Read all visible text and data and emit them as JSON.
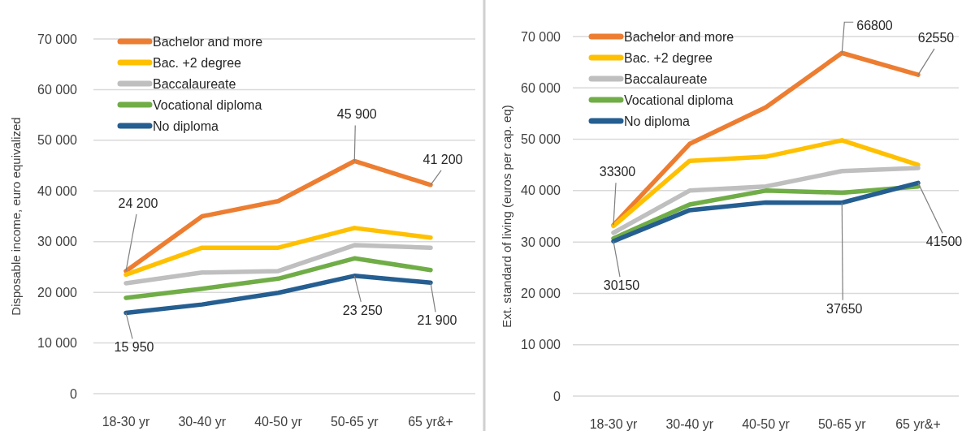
{
  "chart_data": [
    {
      "type": "line",
      "ylabel": "Disposable income, euro equivalized",
      "categories": [
        "18-30 yr",
        "30-40 yr",
        "40-50 yr",
        "50-65 yr",
        "65 yr&+"
      ],
      "ylim": [
        0,
        70000
      ],
      "yticks": [
        {
          "value": 0,
          "label": "0"
        },
        {
          "value": 10000,
          "label": "10 000"
        },
        {
          "value": 20000,
          "label": "20 000"
        },
        {
          "value": 30000,
          "label": "30 000"
        },
        {
          "value": 40000,
          "label": "40 000"
        },
        {
          "value": 50000,
          "label": "50 000"
        },
        {
          "value": 60000,
          "label": "60 000"
        },
        {
          "value": 70000,
          "label": "70 000"
        }
      ],
      "grid": "y",
      "legend": "top left",
      "marker": "none",
      "line_style": "solid",
      "series": [
        {
          "name": "Bachelor and more",
          "color": "#ed7d31",
          "values": [
            24200,
            35000,
            38000,
            45900,
            41200
          ]
        },
        {
          "name": "Bac. +2 degree",
          "color": "#ffc000",
          "values": [
            23500,
            28800,
            28800,
            32700,
            30800
          ]
        },
        {
          "name": "Baccalaureate",
          "color": "#bfbfbf",
          "values": [
            21800,
            23900,
            24200,
            29300,
            28800
          ]
        },
        {
          "name": "Vocational diploma",
          "color": "#70ad47",
          "values": [
            18900,
            20700,
            22700,
            26700,
            24400
          ]
        },
        {
          "name": "No diploma",
          "color": "#255e91",
          "values": [
            15950,
            17600,
            19900,
            23250,
            21900
          ]
        }
      ],
      "annotations": [
        {
          "text": "24 200",
          "x": "18-30 yr",
          "y": 24200
        },
        {
          "text": "45 900",
          "x": "50-65 yr",
          "y": 45900
        },
        {
          "text": "41 200",
          "x": "65 yr&+",
          "y": 41200
        },
        {
          "text": "15 950",
          "x": "18-30 yr",
          "y": 15950
        },
        {
          "text": "23 250",
          "x": "50-65 yr",
          "y": 23250
        },
        {
          "text": "21 900",
          "x": "65 yr&+",
          "y": 21900
        }
      ]
    },
    {
      "type": "line",
      "ylabel": "Ext. standard of living (euros per cap. eq)",
      "categories": [
        "18-30 yr",
        "30-40 yr",
        "40-50 yr",
        "50-65 yr",
        "65 yr&+"
      ],
      "ylim": [
        0,
        70000
      ],
      "yticks": [
        {
          "value": 0,
          "label": "0"
        },
        {
          "value": 10000,
          "label": "10 000"
        },
        {
          "value": 20000,
          "label": "20 000"
        },
        {
          "value": 30000,
          "label": "30 000"
        },
        {
          "value": 40000,
          "label": "40 000"
        },
        {
          "value": 50000,
          "label": "50 000"
        },
        {
          "value": 60000,
          "label": "60 000"
        },
        {
          "value": 70000,
          "label": "70 000"
        }
      ],
      "grid": "y",
      "legend": "top left",
      "marker": "none",
      "line_style": "solid",
      "series": [
        {
          "name": "Bachelor and more",
          "color": "#ed7d31",
          "values": [
            33300,
            49100,
            56200,
            66800,
            62550
          ]
        },
        {
          "name": "Bac. +2 degree",
          "color": "#ffc000",
          "values": [
            33100,
            45800,
            46600,
            49800,
            45000
          ]
        },
        {
          "name": "Baccalaureate",
          "color": "#bfbfbf",
          "values": [
            31800,
            40000,
            40800,
            43800,
            44400
          ]
        },
        {
          "name": "Vocational diploma",
          "color": "#70ad47",
          "values": [
            30700,
            37300,
            40000,
            39600,
            40800
          ]
        },
        {
          "name": "No diploma",
          "color": "#255e91",
          "values": [
            30150,
            36200,
            37700,
            37650,
            41500
          ]
        }
      ],
      "annotations": [
        {
          "text": "33300",
          "x": "18-30 yr",
          "y": 33300
        },
        {
          "text": "66800",
          "x": "50-65 yr",
          "y": 66800
        },
        {
          "text": "62550",
          "x": "65 yr&+",
          "y": 62550
        },
        {
          "text": "30150",
          "x": "18-30 yr",
          "y": 30150
        },
        {
          "text": "37650",
          "x": "50-65 yr",
          "y": 37650
        },
        {
          "text": "41500",
          "x": "65 yr&+",
          "y": 41500
        }
      ]
    }
  ]
}
